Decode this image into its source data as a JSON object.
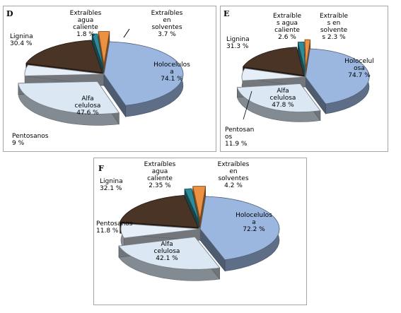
{
  "chart_data": [
    {
      "type": "pie",
      "panel_label": "D",
      "series": [
        {
          "name": "Holocelulosa",
          "value": 74.1,
          "text": "Holocelulos\na\n74.1 %"
        },
        {
          "name": "Alfa celulosa",
          "value": 47.6,
          "text": "Alfa\ncelulosa\n47.6 %"
        },
        {
          "name": "Pentosanos",
          "value": 9,
          "text": "Pentosanos\n9 %"
        },
        {
          "name": "Lignina",
          "value": 30.4,
          "text": "Lignina\n30.4 %"
        },
        {
          "name": "Extraíbles agua caliente",
          "value": 1.8,
          "text": "Extraíbles\nagua\ncaliente\n1.8 %"
        },
        {
          "name": "Extraíbles en solventes",
          "value": 3.7,
          "text": "Extraíbles\nen\nsolventes\n3.7 %"
        }
      ]
    },
    {
      "type": "pie",
      "panel_label": "E",
      "series": [
        {
          "name": "Holocelulosa",
          "value": 74.7,
          "text": "Holocelul\nosa\n74.7 %"
        },
        {
          "name": "Alfa celulosa",
          "value": 47.8,
          "text": "Alfa\ncelulosa\n47.8 %"
        },
        {
          "name": "Pentosanos",
          "value": 11.9,
          "text": "Pentosan\nos\n11.9 %"
        },
        {
          "name": "Lignina",
          "value": 31.3,
          "text": "Lignina\n31.3 %"
        },
        {
          "name": "Extraíbles agua caliente",
          "value": 2.6,
          "text": "Extraíble\ns agua\ncaliente\n2.6 %"
        },
        {
          "name": "Extraíbles en solventes",
          "value": 2.3,
          "text": "Extraíble\ns  en\nsolvente\ns 2.3 %"
        }
      ]
    },
    {
      "type": "pie",
      "panel_label": "F",
      "series": [
        {
          "name": "Holocelulosa",
          "value": 72.2,
          "text": "Holocelulos\na\n72.2 %"
        },
        {
          "name": "Alfa celulosa",
          "value": 42.1,
          "text": "Alfa\ncelulosa\n42.1 %"
        },
        {
          "name": "Pentosanos",
          "value": 11.8,
          "text": "Pentosanos\n11.8 %"
        },
        {
          "name": "Lignina",
          "value": 32.1,
          "text": "Lignina\n32.1 %"
        },
        {
          "name": "Extraíbles agua caliente",
          "value": 2.35,
          "text": "Extraíbles\nagua\ncaliente\n2.35 %"
        },
        {
          "name": "Extraíbles en solventes",
          "value": 4.2,
          "text": "Extraíbles\nen\nsolventes\n4.2 %"
        }
      ]
    }
  ],
  "colors": {
    "holocelulosa": "#9bb7e0",
    "alfa_celulosa": "#dbe7f3",
    "pentosanos": "#e6eef8",
    "lignina": "#4a3426",
    "extraibles_agua_caliente": "#2e8c9a",
    "extraibles_solventes": "#ec9142",
    "panel_border": "#a6a6a6"
  }
}
